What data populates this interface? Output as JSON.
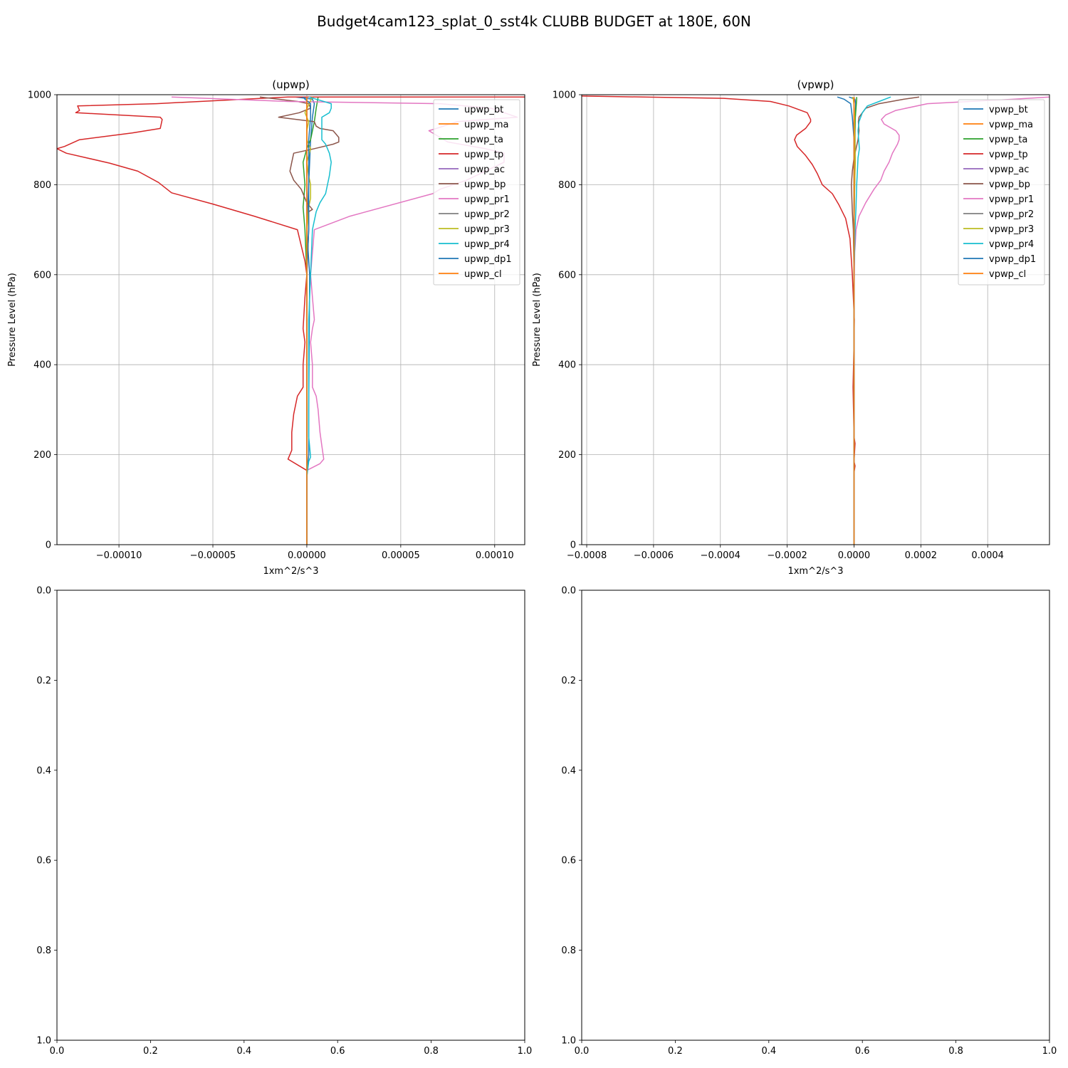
{
  "figure_title": "Budget4cam123_splat_0_sst4k CLUBB BUDGET at 180E, 60N",
  "colors": [
    "#1f77b4",
    "#ff7f0e",
    "#2ca02c",
    "#d62728",
    "#9467bd",
    "#8c564b",
    "#e377c2",
    "#7f7f7f",
    "#bcbd22",
    "#17becf",
    "#1f77b4",
    "#ff7f0e"
  ],
  "chart_data": [
    {
      "type": "line",
      "title": "(upwp)",
      "xlabel": "1xm^2/s^3",
      "ylabel": "Pressure Level (hPa)",
      "xlim": [
        -0.000133,
        0.000116
      ],
      "ylim": [
        1000,
        0
      ],
      "xticks": [
        -0.0001,
        -5e-05,
        0,
        5e-05,
        0.0001
      ],
      "xtick_labels": [
        "−0.00010",
        "−0.00005",
        "0.00000",
        "0.00005",
        "0.00010"
      ],
      "yticks": [
        0,
        200,
        400,
        600,
        800,
        1000
      ],
      "ytick_labels": [
        "0",
        "200",
        "400",
        "600",
        "800",
        "1000"
      ],
      "grid": true,
      "legend": "upper right",
      "series": [
        {
          "name": "upwp_bt",
          "x": [
            0,
            0,
            1e-06,
            1e-06,
            1.5e-06,
            0,
            1e-06,
            2e-06,
            3e-06,
            4e-06,
            3e-06,
            -6e-06
          ],
          "y": [
            0,
            150,
            200,
            300,
            600,
            700,
            800,
            900,
            950,
            980,
            990,
            995
          ]
        },
        {
          "name": "upwp_ma",
          "x": [
            0,
            0,
            0,
            0,
            0,
            0,
            0,
            0,
            0
          ],
          "y": [
            0,
            300,
            600,
            800,
            900,
            950,
            980,
            990,
            995
          ]
        },
        {
          "name": "upwp_ta",
          "x": [
            0,
            0,
            0,
            0,
            -1e-06,
            -2e-06,
            -1e-06,
            -2e-06,
            0,
            2e-06,
            4e-06,
            5e-06,
            6e-06
          ],
          "y": [
            0,
            150,
            300,
            600,
            700,
            750,
            800,
            850,
            880,
            900,
            940,
            970,
            995
          ]
        },
        {
          "name": "upwp_tp",
          "x": [
            0,
            0,
            -1e-05,
            -8e-06,
            -8e-06,
            -8e-06,
            -7e-06,
            -5e-06,
            -2e-06,
            -2e-06,
            -1e-06,
            -2e-06,
            -1e-06,
            0,
            -1e-06,
            -5e-06,
            -2.8e-05,
            -5e-05,
            -7.2e-05,
            -7.9e-05,
            -9e-05,
            -0.000105,
            -0.000128,
            -0.000133,
            -0.000129,
            -0.000121,
            -9.3e-05,
            -7.8e-05,
            -7.7e-05,
            -7.8e-05,
            -0.000123,
            -0.000121,
            -0.000122,
            -8e-05,
            -1e-05,
            0.000116
          ],
          "y": [
            0,
            165,
            190,
            210,
            240,
            250,
            290,
            330,
            350,
            400,
            450,
            480,
            550,
            600,
            630,
            700,
            730,
            757,
            782,
            805,
            830,
            848,
            870,
            880,
            885,
            900,
            915,
            925,
            945,
            950,
            960,
            965,
            975,
            980,
            995,
            995
          ]
        },
        {
          "name": "upwp_ac",
          "x": [
            0,
            0,
            0,
            0,
            0,
            0,
            0,
            0
          ],
          "y": [
            0,
            300,
            600,
            800,
            900,
            950,
            980,
            995
          ]
        },
        {
          "name": "upwp_bp",
          "x": [
            0,
            0,
            0,
            1e-06,
            1e-06,
            3e-06,
            0,
            -3e-06,
            -7e-06,
            -9e-06,
            -8e-06,
            -7e-06,
            4e-06,
            1.4e-05,
            1.7e-05,
            1.7e-05,
            1.4e-05,
            7e-06,
            5e-06,
            4e-06,
            -1.5e-05,
            -4e-06,
            2e-06,
            1e-06,
            -5e-06,
            -2.5e-05
          ],
          "y": [
            0,
            300,
            600,
            700,
            740,
            745,
            760,
            790,
            810,
            830,
            850,
            870,
            880,
            890,
            895,
            905,
            920,
            925,
            930,
            940,
            950,
            960,
            970,
            980,
            985,
            995
          ]
        },
        {
          "name": "upwp_pr1",
          "x": [
            0,
            0,
            0,
            7e-06,
            9e-06,
            8e-06,
            7e-06,
            6e-06,
            5e-06,
            3e-06,
            3e-06,
            2e-06,
            3e-06,
            4e-06,
            3e-06,
            2e-06,
            4e-06,
            2.3e-05,
            6.7e-05,
            7.1e-05,
            8.5e-05,
            9.5e-05,
            0.000105,
            0.000105,
            9.5e-05,
            7.5e-05,
            6.5e-05,
            6.9e-05,
            8e-05,
            0.000112,
            9.8e-05,
            7.1e-05,
            -1e-05,
            -7.2e-05
          ],
          "y": [
            0,
            150,
            165,
            180,
            190,
            220,
            250,
            300,
            330,
            350,
            400,
            450,
            480,
            500,
            550,
            600,
            700,
            730,
            780,
            790,
            810,
            830,
            850,
            870,
            880,
            895,
            920,
            925,
            940,
            950,
            970,
            980,
            985,
            995
          ]
        },
        {
          "name": "upwp_pr2",
          "x": [
            0,
            0,
            0,
            0,
            0,
            0,
            0,
            0
          ],
          "y": [
            0,
            300,
            600,
            800,
            900,
            950,
            980,
            995
          ]
        },
        {
          "name": "upwp_pr3",
          "x": [
            0,
            0,
            0,
            0,
            1e-06,
            2e-06,
            2e-06,
            1e-06,
            0,
            2e-06,
            0,
            0,
            1e-06,
            -1e-06,
            3e-06
          ],
          "y": [
            0,
            300,
            600,
            700,
            750,
            770,
            800,
            820,
            850,
            880,
            900,
            920,
            940,
            960,
            995
          ]
        },
        {
          "name": "upwp_pr4",
          "x": [
            0,
            0,
            1e-06,
            2e-06,
            1e-06,
            1e-06,
            1e-06,
            1e-06,
            2e-06,
            3e-06,
            5e-06,
            7e-06,
            1e-05,
            1.2e-05,
            1.3e-05,
            1.2e-05,
            1e-05,
            8e-06,
            8e-06,
            1.2e-05,
            1.3e-05,
            1.3e-05,
            5e-06,
            1e-06
          ],
          "y": [
            0,
            150,
            185,
            195,
            240,
            300,
            400,
            500,
            600,
            700,
            740,
            760,
            780,
            820,
            850,
            870,
            890,
            900,
            950,
            960,
            970,
            980,
            990,
            995
          ]
        },
        {
          "name": "upwp_dp1",
          "x": [
            0,
            0,
            0,
            1e-06,
            1e-06,
            1e-06,
            1e-06,
            2e-06,
            2e-06,
            -1e-06,
            -2e-06
          ],
          "y": [
            0,
            300,
            600,
            700,
            800,
            850,
            900,
            950,
            980,
            990,
            995
          ]
        },
        {
          "name": "upwp_cl",
          "x": [
            0,
            0,
            0,
            0,
            0,
            0,
            0,
            0
          ],
          "y": [
            0,
            300,
            600,
            800,
            900,
            950,
            980,
            995
          ]
        }
      ]
    },
    {
      "type": "line",
      "title": "(vpwp)",
      "xlabel": "1xm^2/s^3",
      "ylabel": "Pressure Level (hPa)",
      "xlim": [
        -0.000815,
        0.000585
      ],
      "ylim": [
        1000,
        0
      ],
      "xticks": [
        -0.0008,
        -0.0006,
        -0.0004,
        -0.0002,
        0,
        0.0002,
        0.0004
      ],
      "xtick_labels": [
        "−0.0008",
        "−0.0006",
        "−0.0004",
        "−0.0002",
        "0.0000",
        "0.0002",
        "0.0004"
      ],
      "yticks": [
        0,
        200,
        400,
        600,
        800,
        1000
      ],
      "ytick_labels": [
        "0",
        "200",
        "400",
        "600",
        "800",
        "1000"
      ],
      "grid": true,
      "legend": "upper right",
      "series": [
        {
          "name": "vpwp_bt",
          "x": [
            0,
            0,
            0,
            0,
            2e-06,
            3e-06,
            4e-06,
            5e-06,
            3e-06,
            -1.5e-05
          ],
          "y": [
            0,
            300,
            600,
            700,
            800,
            900,
            950,
            980,
            990,
            995
          ]
        },
        {
          "name": "vpwp_ma",
          "x": [
            0,
            0,
            0,
            0,
            0,
            0,
            0
          ],
          "y": [
            0,
            300,
            600,
            800,
            900,
            980,
            995
          ]
        },
        {
          "name": "vpwp_ta",
          "x": [
            0,
            0,
            0,
            0,
            2e-06,
            4e-06,
            6e-06,
            8e-06,
            8e-06
          ],
          "y": [
            0,
            300,
            600,
            800,
            900,
            950,
            970,
            990,
            995
          ]
        },
        {
          "name": "vpwp_tp",
          "x": [
            0,
            0,
            3e-06,
            0,
            3e-06,
            0,
            -3e-06,
            0,
            1e-06,
            -5e-06,
            -1.2e-05,
            -2.5e-05,
            -4.5e-05,
            -6.5e-05,
            -9.5e-05,
            -0.00011,
            -0.000125,
            -0.000145,
            -0.00017,
            -0.000178,
            -0.000172,
            -0.000145,
            -0.00013,
            -0.00013,
            -0.00014,
            -0.000195,
            -0.00025,
            -0.00039,
            -0.000815
          ],
          "y": [
            0,
            160,
            175,
            185,
            225,
            240,
            350,
            450,
            500,
            600,
            680,
            725,
            755,
            780,
            800,
            825,
            845,
            865,
            885,
            900,
            910,
            925,
            940,
            945,
            960,
            975,
            985,
            992,
            997
          ]
        },
        {
          "name": "vpwp_ac",
          "x": [
            0,
            0,
            0,
            0,
            0,
            0,
            0
          ],
          "y": [
            0,
            300,
            600,
            800,
            900,
            980,
            995
          ]
        },
        {
          "name": "vpwp_bp",
          "x": [
            0,
            0,
            0,
            -2e-06,
            -5e-06,
            -8e-06,
            -5e-06,
            0,
            6e-06,
            1.2e-05,
            1.5e-05,
            1.3e-05,
            1.5e-05,
            2.5e-05,
            3.5e-05,
            7.5e-05,
            0.00015,
            0.000195
          ],
          "y": [
            0,
            300,
            600,
            700,
            740,
            800,
            830,
            860,
            880,
            900,
            920,
            940,
            950,
            960,
            970,
            980,
            990,
            995
          ]
        },
        {
          "name": "vpwp_pr1",
          "x": [
            0,
            0,
            0,
            1e-06,
            2e-06,
            4e-06,
            6e-06,
            1.5e-05,
            3.5e-05,
            6e-05,
            8e-05,
            9e-05,
            0.000105,
            0.000115,
            0.00013,
            0.000135,
            0.000135,
            0.000125,
            9e-05,
            8.2e-05,
            9.5e-05,
            0.000125,
            0.00022,
            0.00048,
            0.000585
          ],
          "y": [
            0,
            300,
            550,
            600,
            650,
            670,
            700,
            730,
            760,
            790,
            810,
            830,
            850,
            870,
            890,
            900,
            910,
            920,
            935,
            945,
            955,
            965,
            980,
            990,
            995
          ]
        },
        {
          "name": "vpwp_pr2",
          "x": [
            0,
            0,
            0,
            0,
            0,
            0,
            0
          ],
          "y": [
            0,
            300,
            600,
            800,
            900,
            980,
            995
          ]
        },
        {
          "name": "vpwp_pr3",
          "x": [
            0,
            0,
            0,
            0,
            2e-06,
            4e-06,
            3e-06,
            2e-06,
            1e-06,
            -2e-06,
            -5e-06
          ],
          "y": [
            0,
            300,
            600,
            700,
            800,
            850,
            900,
            950,
            970,
            990,
            995
          ]
        },
        {
          "name": "vpwp_pr4",
          "x": [
            0,
            0,
            0,
            3e-06,
            6e-06,
            8e-06,
            1e-05,
            1.2e-05,
            1.6e-05,
            1.4e-05,
            1.2e-05,
            1.5e-05,
            2.5e-05,
            4e-05,
            7.5e-05,
            0.00011
          ],
          "y": [
            0,
            300,
            600,
            700,
            750,
            800,
            830,
            860,
            880,
            900,
            920,
            940,
            960,
            975,
            985,
            995
          ]
        },
        {
          "name": "vpwp_dp1",
          "x": [
            0,
            0,
            0,
            0,
            0,
            -5e-06,
            -1e-05,
            -3e-05,
            -5e-05
          ],
          "y": [
            0,
            300,
            600,
            800,
            900,
            950,
            980,
            990,
            995
          ]
        },
        {
          "name": "vpwp_cl",
          "x": [
            0,
            0,
            0,
            0,
            0,
            0,
            0
          ],
          "y": [
            0,
            300,
            600,
            800,
            900,
            980,
            995
          ]
        }
      ]
    },
    {
      "type": "line",
      "title": "",
      "xlim": [
        0,
        1
      ],
      "ylim": [
        0,
        1
      ],
      "xticks": [
        0,
        0.2,
        0.4,
        0.6,
        0.8,
        1.0
      ],
      "xtick_labels": [
        "0.0",
        "0.2",
        "0.4",
        "0.6",
        "0.8",
        "1.0"
      ],
      "yticks": [
        0,
        0.2,
        0.4,
        0.6,
        0.8,
        1.0
      ],
      "ytick_labels": [
        "0.0",
        "0.2",
        "0.4",
        "0.6",
        "0.8",
        "1.0"
      ],
      "grid": false,
      "series": []
    },
    {
      "type": "line",
      "title": "",
      "xlim": [
        0,
        1
      ],
      "ylim": [
        0,
        1
      ],
      "xticks": [
        0,
        0.2,
        0.4,
        0.6,
        0.8,
        1.0
      ],
      "xtick_labels": [
        "0.0",
        "0.2",
        "0.4",
        "0.6",
        "0.8",
        "1.0"
      ],
      "yticks": [
        0,
        0.2,
        0.4,
        0.6,
        0.8,
        1.0
      ],
      "ytick_labels": [
        "0.0",
        "0.2",
        "0.4",
        "0.6",
        "0.8",
        "1.0"
      ],
      "grid": false,
      "series": []
    }
  ]
}
